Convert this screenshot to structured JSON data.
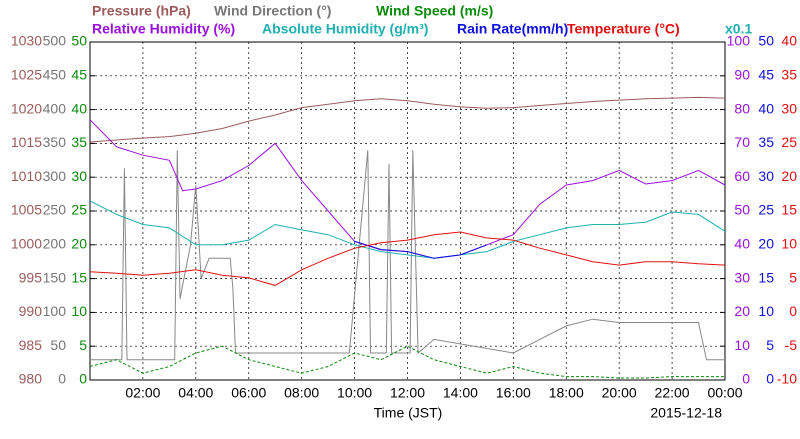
{
  "chart_data": {
    "type": "line",
    "headers": [
      {
        "text": "Pressure (hPa)",
        "color": "#9b5b5b"
      },
      {
        "text": "Wind Direction (°)",
        "color": "#777777"
      },
      {
        "text": "Wind Speed (m/s)",
        "color": "#0a8a0a"
      },
      {
        "text": "Relative Humidity (%)",
        "color": "#9a10e0"
      },
      {
        "text": "Absolute Humidity (g/m³)",
        "color": "#20b0b0"
      },
      {
        "text": "Rain Rate(mm/h)",
        "color": "#1010e0"
      },
      {
        "text": "Temperature (°C)",
        "color": "#e01010"
      },
      {
        "text": "x0.1",
        "color": "#20b0b0"
      }
    ],
    "xlabel": "Time (JST)",
    "date": "2015-12-18",
    "xlim": [
      0,
      24
    ],
    "xticks": [
      {
        "value": 2,
        "label": "02:00"
      },
      {
        "value": 4,
        "label": "04:00"
      },
      {
        "value": 6,
        "label": "06:00"
      },
      {
        "value": 8,
        "label": "08:00"
      },
      {
        "value": 10,
        "label": "10:00"
      },
      {
        "value": 12,
        "label": "12:00"
      },
      {
        "value": 14,
        "label": "14:00"
      },
      {
        "value": 16,
        "label": "16:00"
      },
      {
        "value": 18,
        "label": "18:00"
      },
      {
        "value": 20,
        "label": "20:00"
      },
      {
        "value": 22,
        "label": "22:00"
      },
      {
        "value": 24,
        "label": "00:00"
      }
    ],
    "grid": true,
    "y_axes": [
      {
        "lim": [
          980,
          1030
        ],
        "ticks": [
          980,
          985,
          990,
          995,
          1000,
          1005,
          1010,
          1015,
          1020,
          1025,
          1030
        ],
        "color": "#9b5b5b",
        "side": "left"
      },
      {
        "lim": [
          0,
          500
        ],
        "ticks": [
          0,
          50,
          100,
          150,
          200,
          250,
          300,
          350,
          400,
          450,
          500
        ],
        "color": "#777777",
        "side": "left"
      },
      {
        "lim": [
          0,
          50
        ],
        "ticks": [
          0,
          5,
          10,
          15,
          20,
          25,
          30,
          35,
          40,
          45,
          50
        ],
        "color": "#0a8a0a",
        "side": "left"
      },
      {
        "lim": [
          0,
          100
        ],
        "ticks": [
          0,
          10,
          20,
          30,
          40,
          50,
          60,
          70,
          80,
          90,
          100
        ],
        "color": "#9a10e0",
        "side": "right"
      },
      {
        "lim": [
          0,
          50
        ],
        "ticks": [
          0,
          5,
          10,
          15,
          20,
          25,
          30,
          35,
          40,
          45,
          50
        ],
        "color": "#1010e0",
        "side": "right"
      },
      {
        "lim": [
          -10,
          40
        ],
        "ticks": [
          -10,
          -5,
          0,
          5,
          10,
          15,
          20,
          25,
          30,
          35,
          40
        ],
        "color": "#e01010",
        "side": "right"
      }
    ],
    "series": [
      {
        "name": "Pressure (hPa)",
        "axis": 0,
        "color": "#9b5b5b",
        "x": [
          0,
          1,
          2,
          3,
          4,
          5,
          6,
          7,
          8,
          9,
          10,
          11,
          12,
          13,
          14,
          15,
          16,
          17,
          18,
          19,
          20,
          21,
          22,
          23,
          24
        ],
        "values": [
          1015.2,
          1015.5,
          1015.8,
          1016.0,
          1016.5,
          1017.2,
          1018.3,
          1019.2,
          1020.3,
          1020.8,
          1021.3,
          1021.6,
          1021.3,
          1020.8,
          1020.4,
          1020.2,
          1020.3,
          1020.6,
          1020.9,
          1021.2,
          1021.4,
          1021.6,
          1021.7,
          1021.8,
          1021.7
        ]
      },
      {
        "name": "Wind Direction (°)",
        "axis": 1,
        "color": "#888888",
        "x": [
          0,
          1.2,
          1.3,
          1.4,
          3.2,
          3.3,
          3.4,
          3.8,
          4.0,
          4.2,
          4.5,
          5.3,
          5.4,
          5.5,
          6,
          9.8,
          10.5,
          10.6,
          11.2,
          11.3,
          11.4,
          12.1,
          12.2,
          12.4,
          13,
          16,
          17,
          18,
          19,
          20,
          21,
          22,
          23,
          23.3,
          24
        ],
        "values": [
          30,
          30,
          313,
          30,
          30,
          340,
          120,
          200,
          288,
          150,
          180,
          180,
          135,
          40,
          40,
          40,
          340,
          40,
          40,
          320,
          40,
          40,
          340,
          40,
          60,
          40,
          60,
          80,
          90,
          85,
          85,
          85,
          85,
          30,
          30
        ]
      },
      {
        "name": "Wind Speed (m/s)",
        "axis": 2,
        "color": "#0a8a0a",
        "dashed": true,
        "x": [
          0,
          1,
          2,
          3,
          4,
          5,
          6,
          7,
          8,
          9,
          10,
          11,
          12,
          13,
          14,
          15,
          16,
          17,
          18,
          19,
          20,
          21,
          22,
          23,
          24
        ],
        "values": [
          2,
          3,
          1,
          2,
          4,
          5,
          3,
          2,
          1,
          2,
          4,
          3,
          5,
          3,
          2,
          1,
          2,
          1,
          0.5,
          0.5,
          0.3,
          0.3,
          0.5,
          0.5,
          0.5
        ]
      },
      {
        "name": "Relative Humidity (%)",
        "axis": 3,
        "color": "#9a10e0",
        "x": [
          0,
          1,
          2,
          3,
          3.5,
          4,
          5,
          6,
          7,
          8,
          9,
          10,
          11,
          12,
          13,
          14,
          15,
          16,
          17,
          18,
          19,
          20,
          21,
          22,
          23,
          24
        ],
        "values": [
          77,
          69,
          66.5,
          65,
          56,
          56.5,
          59,
          63.5,
          70,
          59,
          50,
          41,
          38.5,
          38,
          36,
          37,
          40,
          43,
          52,
          57.7,
          59,
          62,
          58,
          59,
          62,
          57.7
        ]
      },
      {
        "name": "Absolute Humidity (g/m³)",
        "axis": 3,
        "color": "#20b0b0",
        "x": [
          0,
          1,
          2,
          3,
          4,
          5,
          6,
          7,
          8,
          9,
          10,
          11,
          12,
          13,
          14,
          15,
          16,
          17,
          18,
          19,
          20,
          21,
          22,
          23,
          24
        ],
        "values": [
          53,
          49,
          46,
          45,
          40,
          40,
          41.4,
          46,
          44.4,
          43,
          40,
          38,
          37,
          36,
          37,
          38,
          41,
          43,
          45,
          46,
          46,
          46.7,
          49.7,
          49,
          44
        ]
      },
      {
        "name": "Rain Rate(mm/h)",
        "axis": 4,
        "color": "#1010e0",
        "x": [
          10,
          11,
          12,
          13,
          14,
          15
        ],
        "values": [
          20.5,
          19.3,
          19,
          18,
          18.5,
          20
        ]
      },
      {
        "name": "Temperature (°C)",
        "axis": 5,
        "color": "#e01010",
        "x": [
          0,
          1,
          2,
          3,
          4,
          5,
          6,
          7,
          8,
          9,
          10,
          11,
          12,
          13,
          14,
          15,
          16,
          17,
          18,
          19,
          20,
          21,
          22,
          23,
          24
        ],
        "values": [
          6,
          5.8,
          5.5,
          5.8,
          6.3,
          5.5,
          5.1,
          4,
          6.3,
          8,
          9.5,
          10.3,
          10.7,
          11.5,
          11.9,
          11,
          10.7,
          9.5,
          8.5,
          7.5,
          7,
          7.5,
          7.5,
          7.2,
          7
        ]
      }
    ]
  }
}
